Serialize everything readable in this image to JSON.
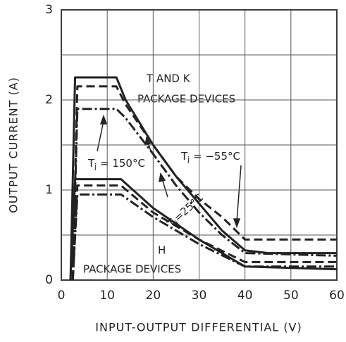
{
  "chart_data": {
    "type": "line",
    "x_label": "INPUT-OUTPUT DIFFERENTIAL (V)",
    "y_label": "OUTPUT CURRENT (A)",
    "xlim": [
      0,
      60
    ],
    "xticks": [
      0,
      10,
      20,
      30,
      40,
      50,
      60
    ],
    "ylim": [
      0,
      3
    ],
    "yticks": [
      0,
      1,
      2,
      3
    ],
    "y_minor_gridlines": [
      0.5,
      1.5,
      2.5
    ],
    "grid": true,
    "color": "#222",
    "series": [
      {
        "style": "solid",
        "x": [
          2,
          3,
          12,
          14,
          20,
          25,
          30,
          35,
          40,
          45,
          60
        ],
        "values": [
          0,
          2.25,
          2.25,
          2.0,
          1.5,
          1.15,
          0.85,
          0.55,
          0.33,
          0.3,
          0.3
        ]
      },
      {
        "style": "dashed",
        "x": [
          2.5,
          3.5,
          12,
          14,
          20,
          25,
          30,
          35,
          40,
          60
        ],
        "values": [
          0,
          2.15,
          2.15,
          1.95,
          1.5,
          1.15,
          0.9,
          0.7,
          0.45,
          0.45
        ]
      },
      {
        "style": "dashdot",
        "x": [
          2.5,
          3.5,
          12,
          14,
          20,
          25,
          30,
          35,
          40,
          60
        ],
        "values": [
          0,
          1.9,
          1.9,
          1.8,
          1.4,
          1.05,
          0.75,
          0.5,
          0.3,
          0.27
        ]
      },
      {
        "style": "solid",
        "x": [
          2,
          3,
          13,
          20,
          30,
          40,
          60
        ],
        "values": [
          0,
          1.12,
          1.12,
          0.8,
          0.45,
          0.15,
          0.12
        ]
      },
      {
        "style": "dashed",
        "x": [
          2.5,
          3.5,
          13,
          20,
          30,
          40,
          60
        ],
        "values": [
          0,
          1.05,
          1.05,
          0.75,
          0.45,
          0.2,
          0.2
        ]
      },
      {
        "style": "dashdot",
        "x": [
          2.5,
          3.5,
          13,
          20,
          30,
          40,
          60
        ],
        "values": [
          0,
          0.95,
          0.95,
          0.7,
          0.4,
          0.15,
          0.15
        ]
      }
    ],
    "annotations": {
      "tk_line1": "T AND K",
      "tk_line2": "PACKAGE DEVICES",
      "h_line1": "H",
      "h_line2": "PACKAGE DEVICES",
      "tj150": {
        "symbol": "T",
        "subscript": "j",
        "text": " = 150°C"
      },
      "tjm55": {
        "symbol": "T",
        "subscript": "j",
        "text": " = −55°C"
      },
      "tj25": {
        "symbol": "T",
        "subscript": "j",
        "text": "=25°C"
      }
    }
  }
}
